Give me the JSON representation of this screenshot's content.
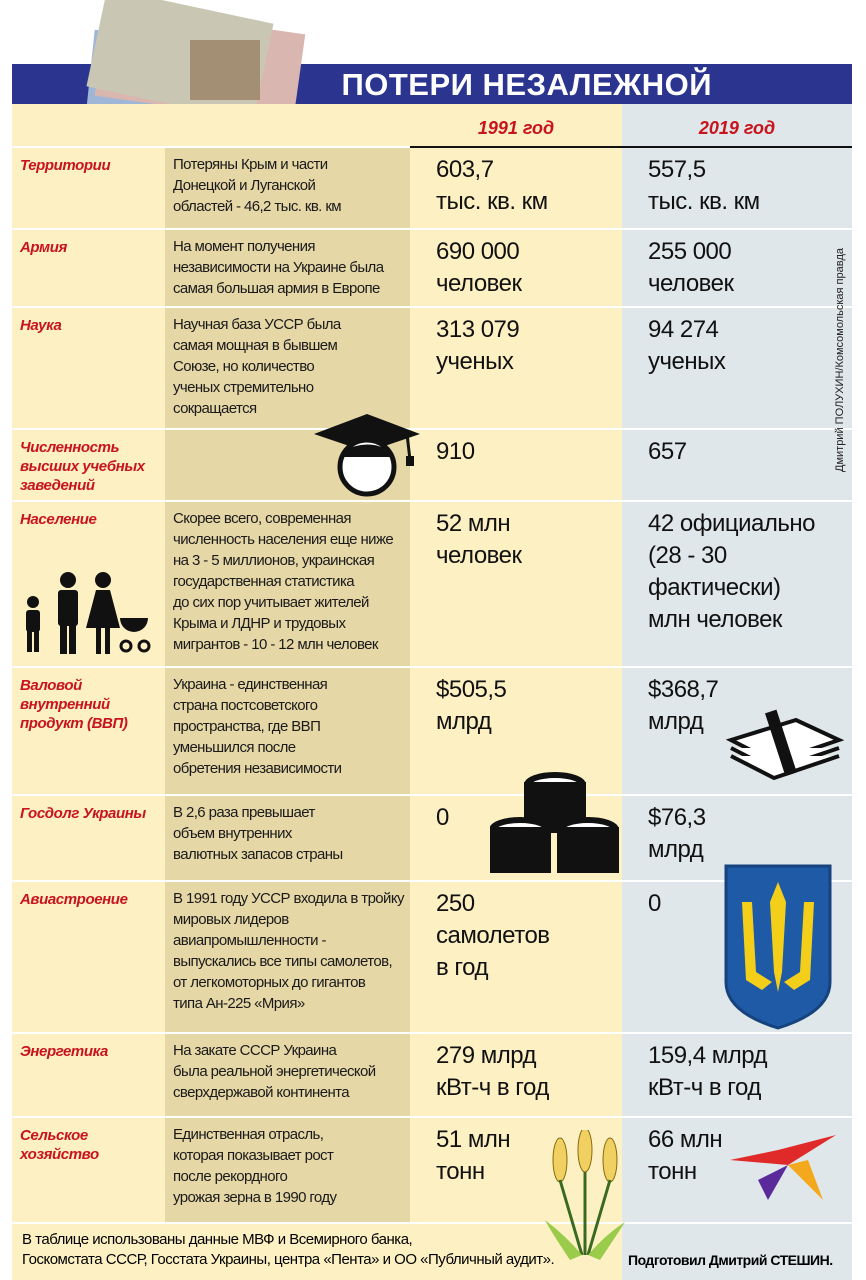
{
  "title": "ПОТЕРИ НЕЗАЛЕЖНОЙ",
  "columns": {
    "y1991": "1991 год",
    "y2019": "2019 год"
  },
  "credit": "Дмитрий ПОЛУХИН/Комсомольская правда",
  "rows": [
    {
      "label": "Территории",
      "desc": "Потеряны Крым и части\nДонецкой и Луганской\nобластей - 46,2 тыс. кв. км",
      "v1991": "603,7\nтыс. кв. км",
      "v2019": "557,5\nтыс. кв. км"
    },
    {
      "label": "Армия",
      "desc": "На момент получения\nнезависимости на Украине была\nсамая большая армия в Европе",
      "v1991": "690 000\nчеловек",
      "v2019": "255 000\nчеловек"
    },
    {
      "label": "Наука",
      "desc": "Научная база УССР была\nсамая мощная в бывшем\nСоюзе, но количество\nученых стремительно\nсокращается",
      "v1991": "313 079\nученых",
      "v2019": "94 274\nученых"
    },
    {
      "label": "Численность высших учебных заведений",
      "desc": "",
      "v1991": "910",
      "v2019": "657"
    },
    {
      "label": "Население",
      "desc": "Скорее всего, современная\nчисленность населения еще ниже\nна 3 - 5 миллионов, украинская\nгосударственная статистика\nдо сих пор учитывает жителей\nКрыма и ЛДНР и трудовых\nмигрантов - 10 - 12 млн человек",
      "v1991": "52 млн\nчеловек",
      "v2019": "42 официально\n(28 - 30\nфактически)\nмлн человек"
    },
    {
      "label": "Валовой внутренний продукт (ВВП)",
      "desc": "Украина - единственная\nстрана постсоветского\nпространства, где ВВП\nуменьшился после\nобретения независимости",
      "v1991": "$505,5\nмлрд",
      "v2019": "$368,7\nмлрд"
    },
    {
      "label": "Госдолг Украины",
      "desc": "В 2,6 раза превышает\nобъем внутренних\nвалютных запасов страны",
      "v1991": "0",
      "v2019": "$76,3\nмлрд"
    },
    {
      "label": "Авиастроение",
      "desc": "В 1991 году УССР входила в тройку\nмировых лидеров\nавиапромышленности -\nвыпускались все типы самолетов,\nот легкомоторных до гигантов\nтипа Ан-225 «Мрия»",
      "v1991": "250\nсамолетов\nв год",
      "v2019": "0"
    },
    {
      "label": "Энергетика",
      "desc": "На закате СССР Украина\nбыла реальной энергетической\nсверхдержавой континента",
      "v1991": "279 млрд\nкВт-ч в год",
      "v2019": "159,4 млрд\nкВт-ч в год"
    },
    {
      "label": "Сельское хозяйство",
      "desc": "Единственная отрасль,\nкоторая показывает рост\nпосле рекордного\nурожая зерна в 1990 году",
      "v1991": "51 млн\nтонн",
      "v2019": "66 млн\nтонн"
    }
  ],
  "footer": {
    "sources": "В таблице использованы данные МВФ и Всемирного банка,\nГоскомстата СССР, Госстата Украины, центра «Пента» и ОО «Публичный аудит».",
    "author": "Подготовил Дмитрий СТЕШИН."
  },
  "colors": {
    "banner": "#2b3590",
    "label": "#c8141c",
    "col_light": "#fdf1c4",
    "col_tan": "#e6d7a6",
    "col_blue": "#dfe7ea"
  }
}
